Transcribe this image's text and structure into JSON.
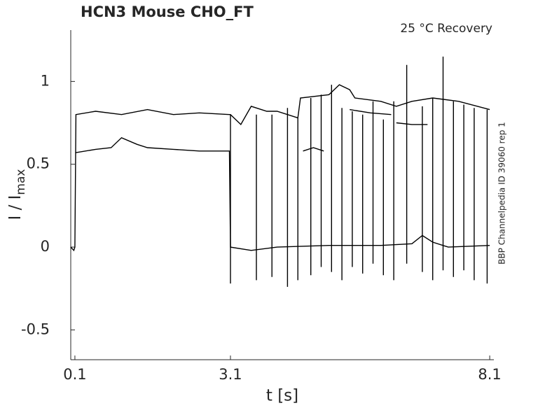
{
  "chart_data": {
    "type": "line",
    "title": "HCN3  Mouse  CHO_FT",
    "annotation": "25 °C  Recovery",
    "side_note": "BBP Channelpedia ID 39060 rep 1",
    "x_label": "t [s]",
    "y_label": "I / I",
    "y_label_subscript": "max",
    "xlim": [
      0.02,
      8.18
    ],
    "ylim": [
      -0.68,
      1.31
    ],
    "xticks": [
      0.1,
      3.1,
      8.1
    ],
    "yticks": [
      -0.5,
      0,
      0.5,
      1
    ],
    "grid": false,
    "series": [
      {
        "color": "#000000",
        "x": [
          0.02,
          0.08,
          0.1,
          0.12,
          0.5,
          1.0,
          1.5,
          2.0,
          2.5,
          3.08,
          3.1,
          3.3,
          3.5,
          3.8,
          4.0,
          4.4,
          4.45,
          5.0,
          5.2,
          5.4,
          5.5,
          6.0,
          6.3,
          6.6,
          7.0,
          7.5,
          8.1
        ],
        "values": [
          0,
          -0.02,
          0,
          0.8,
          0.82,
          0.8,
          0.83,
          0.8,
          0.81,
          0.8,
          0.8,
          0.74,
          0.85,
          0.82,
          0.82,
          0.78,
          0.9,
          0.92,
          0.98,
          0.95,
          0.9,
          0.88,
          0.85,
          0.88,
          0.9,
          0.88,
          0.83
        ]
      },
      {
        "color": "#000000",
        "x": [
          0.12,
          0.5,
          0.8,
          1.0,
          1.3,
          1.5,
          2.0,
          2.5,
          3.08,
          3.1,
          3.5,
          4.0,
          5.0,
          6.0,
          6.6,
          6.8,
          7.0,
          7.3,
          8.1
        ],
        "values": [
          0.57,
          0.59,
          0.6,
          0.66,
          0.62,
          0.6,
          0.59,
          0.58,
          0.58,
          0,
          -0.02,
          0,
          0.01,
          0.01,
          0.02,
          0.07,
          0.03,
          0,
          0.01
        ]
      },
      {
        "color": "#000000",
        "x": [
          4.5,
          4.7,
          4.9,
          4.95,
          5.4,
          5.8,
          6.2,
          6.25,
          6.3,
          6.6,
          6.9
        ],
        "values": [
          0.58,
          0.6,
          0.58,
          null,
          0.83,
          0.81,
          0.8,
          null,
          0.75,
          0.74,
          0.74
        ]
      },
      {
        "color": "#000000",
        "x": [
          3.1,
          3.1,
          3.1,
          3.6,
          3.6,
          3.6,
          3.9,
          3.9,
          3.9,
          4.2,
          4.2,
          4.2,
          4.4,
          4.4,
          4.4,
          4.65,
          4.65,
          4.65,
          4.85,
          4.85,
          4.85,
          5.05,
          5.05,
          5.05,
          5.25,
          5.25,
          5.25,
          5.45,
          5.45,
          5.45,
          5.65,
          5.65,
          5.65,
          5.85,
          5.85,
          5.85,
          6.05,
          6.05,
          6.05,
          6.25,
          6.25,
          6.25,
          6.5,
          6.5,
          6.5,
          6.8,
          6.8,
          6.8,
          7.0,
          7.0,
          7.0,
          7.2,
          7.2,
          7.2,
          7.4,
          7.4,
          7.4,
          7.6,
          7.6,
          7.6,
          7.8,
          7.8,
          7.8,
          8.05,
          8.05
        ],
        "values": [
          -0.22,
          0.8,
          null,
          -0.2,
          0.8,
          null,
          -0.18,
          0.8,
          null,
          -0.24,
          0.84,
          null,
          -0.2,
          0.78,
          null,
          -0.17,
          0.9,
          null,
          -0.12,
          0.92,
          null,
          -0.15,
          0.98,
          null,
          -0.2,
          0.84,
          null,
          -0.12,
          0.82,
          null,
          -0.16,
          0.8,
          null,
          -0.1,
          0.88,
          null,
          -0.17,
          0.77,
          null,
          -0.2,
          0.88,
          null,
          -0.1,
          1.1,
          null,
          -0.15,
          0.85,
          null,
          -0.2,
          0.9,
          null,
          -0.14,
          1.15,
          null,
          -0.18,
          0.88,
          null,
          -0.14,
          0.86,
          null,
          -0.2,
          0.84,
          null,
          -0.22,
          0.83
        ]
      }
    ]
  }
}
